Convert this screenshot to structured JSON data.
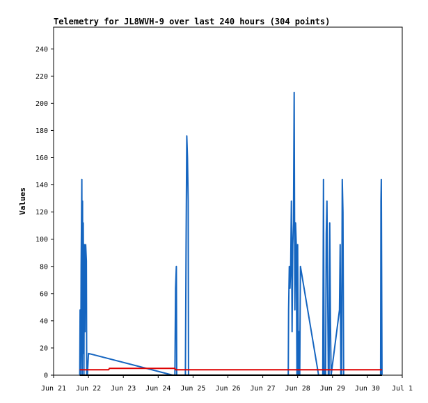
{
  "chart_data": {
    "type": "line",
    "title": "Telemetry for JL8WVH-9 over last 240 hours (304 points)",
    "xlabel": "",
    "ylabel": "Values",
    "x_unit": "days (June, day-of-month)",
    "xlim": [
      21,
      31
    ],
    "ylim": [
      0,
      256
    ],
    "x_ticks": [
      21,
      22,
      23,
      24,
      25,
      26,
      27,
      28,
      29,
      30,
      31
    ],
    "x_tick_labels": [
      "Jun 21",
      "Jun 22",
      "Jun 23",
      "Jun 24",
      "Jun 25",
      "Jun 26",
      "Jun 27",
      "Jun 28",
      "Jun 29",
      "Jun 30",
      "Jul 1"
    ],
    "y_ticks": [
      0,
      20,
      40,
      60,
      80,
      100,
      120,
      140,
      160,
      180,
      200,
      220,
      240
    ],
    "grid": false,
    "legend": "none",
    "series": [
      {
        "color": "#1565c0",
        "points": [
          [
            21.75,
            0
          ],
          [
            21.76,
            48
          ],
          [
            21.77,
            0
          ],
          [
            21.78,
            16
          ],
          [
            21.79,
            80
          ],
          [
            21.81,
            144
          ],
          [
            21.82,
            0
          ],
          [
            21.83,
            128
          ],
          [
            21.84,
            16
          ],
          [
            21.85,
            112
          ],
          [
            21.86,
            64
          ],
          [
            21.87,
            0
          ],
          [
            21.88,
            96
          ],
          [
            21.9,
            32
          ],
          [
            21.92,
            96
          ],
          [
            21.94,
            84
          ],
          [
            21.95,
            0
          ],
          [
            21.96,
            8
          ],
          [
            21.97,
            0
          ],
          [
            22.0,
            16
          ],
          [
            24.42,
            0
          ],
          [
            24.48,
            0
          ],
          [
            24.5,
            64
          ],
          [
            24.52,
            80
          ],
          [
            24.53,
            0
          ],
          [
            24.7,
            0
          ],
          [
            24.78,
            0
          ],
          [
            24.8,
            96
          ],
          [
            24.82,
            176
          ],
          [
            24.84,
            160
          ],
          [
            24.86,
            128
          ],
          [
            24.87,
            0
          ],
          [
            27.73,
            0
          ],
          [
            27.74,
            48
          ],
          [
            27.76,
            80
          ],
          [
            27.78,
            64
          ],
          [
            27.8,
            80
          ],
          [
            27.82,
            128
          ],
          [
            27.84,
            32
          ],
          [
            27.86,
            96
          ],
          [
            27.88,
            112
          ],
          [
            27.9,
            208
          ],
          [
            27.92,
            48
          ],
          [
            27.94,
            112
          ],
          [
            27.96,
            96
          ],
          [
            27.98,
            0
          ],
          [
            28.0,
            96
          ],
          [
            28.02,
            0
          ],
          [
            28.04,
            32
          ],
          [
            28.06,
            0
          ],
          [
            28.08,
            80
          ],
          [
            28.6,
            0
          ],
          [
            28.72,
            0
          ],
          [
            28.74,
            144
          ],
          [
            28.76,
            0
          ],
          [
            28.8,
            0
          ],
          [
            28.82,
            104
          ],
          [
            28.84,
            128
          ],
          [
            28.86,
            64
          ],
          [
            28.88,
            0
          ],
          [
            28.9,
            0
          ],
          [
            28.92,
            112
          ],
          [
            28.94,
            40
          ],
          [
            28.96,
            0
          ],
          [
            29.2,
            48
          ],
          [
            29.22,
            96
          ],
          [
            29.24,
            0
          ],
          [
            29.26,
            0
          ],
          [
            29.28,
            144
          ],
          [
            29.3,
            120
          ],
          [
            29.32,
            0
          ],
          [
            30.38,
            0
          ],
          [
            30.39,
            128
          ],
          [
            30.4,
            144
          ],
          [
            30.42,
            0
          ]
        ]
      },
      {
        "color": "#dd0000",
        "points": [
          [
            21.75,
            4
          ],
          [
            22.58,
            4
          ],
          [
            22.6,
            5
          ],
          [
            24.48,
            5
          ],
          [
            24.5,
            4
          ],
          [
            27.73,
            4
          ],
          [
            30.42,
            4
          ]
        ]
      },
      {
        "color": "#000000",
        "points": [
          [
            21.75,
            0
          ],
          [
            30.42,
            0
          ]
        ]
      }
    ]
  }
}
